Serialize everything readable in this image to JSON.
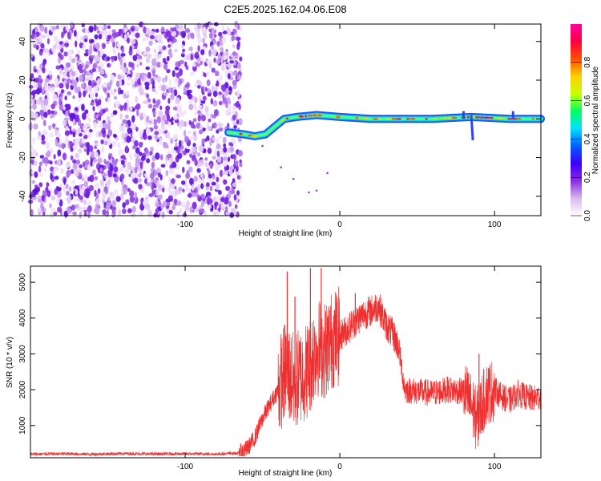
{
  "title": "C2E5.2025.162.04.06.E08",
  "chart_data": [
    {
      "type": "heatmap",
      "xlabel": "Height of straight line (km)",
      "ylabel": "Frequency (Hz)",
      "xlim": [
        -200,
        130
      ],
      "ylim": [
        -50,
        49
      ],
      "x_ticks": [
        -100,
        0,
        100
      ],
      "y_ticks": [
        -40,
        -20,
        0,
        20,
        40
      ],
      "noise_region": {
        "x_from": -200,
        "x_to": -64
      },
      "ridge": [
        {
          "x": -72,
          "y": -7
        },
        {
          "x": -62,
          "y": -8
        },
        {
          "x": -55,
          "y": -9
        },
        {
          "x": -48,
          "y": -8
        },
        {
          "x": -42,
          "y": -4
        },
        {
          "x": -36,
          "y": 0
        },
        {
          "x": -28,
          "y": 1
        },
        {
          "x": -15,
          "y": 2
        },
        {
          "x": 0,
          "y": 1
        },
        {
          "x": 20,
          "y": 0
        },
        {
          "x": 40,
          "y": 0
        },
        {
          "x": 60,
          "y": 0
        },
        {
          "x": 85,
          "y": 1
        },
        {
          "x": 110,
          "y": 0
        },
        {
          "x": 130,
          "y": 0
        }
      ],
      "colorbar": {
        "label": "Normalized spectral amplitude",
        "range": [
          0,
          1
        ],
        "ticks": [
          "0.0",
          "0.2",
          "0.4",
          "0.6",
          "0.8"
        ],
        "tick_values": [
          0,
          0.2,
          0.4,
          0.6,
          0.8
        ],
        "colors": [
          "#ffffff",
          "#d8b8f0",
          "#8a2be2",
          "#3a00ff",
          "#0060ff",
          "#00e0ff",
          "#00ff60",
          "#c8ff00",
          "#ffd000",
          "#ff5000",
          "#ff0040",
          "#ff00a0"
        ]
      }
    },
    {
      "type": "line",
      "xlabel": "Height of straight line (km)",
      "ylabel": "SNR (10 * v/v)",
      "xlim": [
        -200,
        130
      ],
      "ylim": [
        100,
        5450
      ],
      "x_ticks": [
        -100,
        0,
        100
      ],
      "y_ticks": [
        1000,
        2000,
        3000,
        4000,
        5000
      ],
      "color": "#ee3030",
      "series": [
        {
          "x": [
            -200,
            -180,
            -160,
            -140,
            -120,
            -100,
            -80,
            -65,
            -60,
            -55,
            -50,
            -45,
            -40,
            -35,
            -30,
            -25,
            -20,
            -15,
            -10,
            -5,
            0,
            5,
            10,
            15,
            20,
            25,
            30,
            35,
            38,
            42,
            50,
            60,
            70,
            80,
            85,
            88,
            90,
            92,
            95,
            100,
            105,
            110,
            115,
            120,
            125,
            130
          ],
          "y": [
            200,
            210,
            200,
            215,
            205,
            210,
            205,
            230,
            350,
            650,
            1200,
            1600,
            2000,
            2600,
            2200,
            2400,
            2600,
            3200,
            3100,
            3400,
            3500,
            3700,
            3900,
            4100,
            4200,
            4350,
            3800,
            3500,
            3200,
            2000,
            1950,
            1900,
            2000,
            1950,
            1600,
            1200,
            1300,
            1600,
            1900,
            2000,
            1800,
            1700,
            1900,
            1800,
            1750,
            1800
          ]
        }
      ],
      "spikes": [
        {
          "x": -34,
          "y": 5300
        },
        {
          "x": -29,
          "y": 4600
        },
        {
          "x": -19,
          "y": 5400
        },
        {
          "x": -12,
          "y": 5400
        },
        {
          "x": 10,
          "y": 4700
        },
        {
          "x": 90,
          "y": 3000
        }
      ]
    }
  ]
}
